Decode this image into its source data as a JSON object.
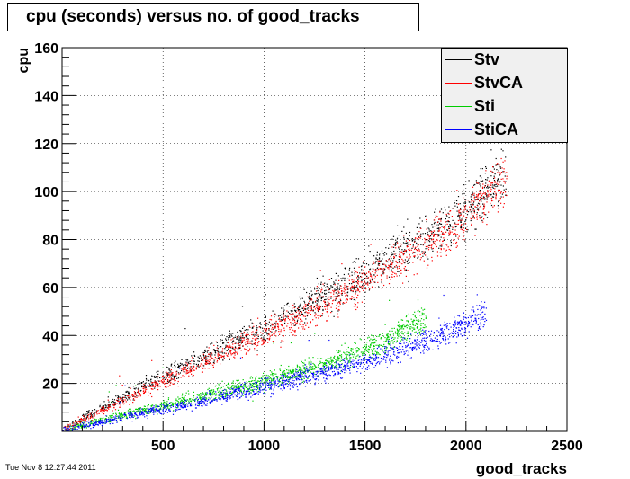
{
  "title": "cpu (seconds) versus no. of good_tracks",
  "timestamp": "Tue Nov  8 12:27:44 2011",
  "colors": {
    "Stv": "#000000",
    "StvCA": "#ff0000",
    "Sti": "#00cc00",
    "StiCA": "#0000ff"
  },
  "chart_data": {
    "type": "scatter",
    "title": "cpu (seconds) versus no. of good_tracks",
    "xlabel": "good_tracks",
    "ylabel": "cpu",
    "xlim": [
      0,
      2500
    ],
    "ylim": [
      0,
      160
    ],
    "xticks": [
      500,
      1000,
      1500,
      2000,
      2500
    ],
    "yticks": [
      20,
      40,
      60,
      80,
      100,
      120,
      140,
      160
    ],
    "grid": true,
    "legend_position": "top-right",
    "series": [
      {
        "name": "Stv",
        "color": "#000000",
        "x": [
          0,
          200,
          400,
          600,
          800,
          1000,
          1200,
          1400,
          1600,
          1800,
          2000,
          2200
        ],
        "y": [
          1,
          10,
          19,
          27,
          35,
          43,
          52,
          61,
          71,
          81,
          93,
          110
        ]
      },
      {
        "name": "StvCA",
        "color": "#ff0000",
        "x": [
          0,
          200,
          400,
          600,
          800,
          1000,
          1200,
          1400,
          1600,
          1800,
          2000,
          2200
        ],
        "y": [
          1,
          9,
          17,
          25,
          33,
          41,
          49,
          58,
          68,
          78,
          90,
          107
        ]
      },
      {
        "name": "Sti",
        "color": "#00cc00",
        "x": [
          0,
          200,
          400,
          600,
          800,
          1000,
          1200,
          1400,
          1600,
          1800
        ],
        "y": [
          1,
          5,
          9,
          13,
          17,
          21,
          26,
          31,
          38,
          48
        ]
      },
      {
        "name": "StiCA",
        "color": "#0000ff",
        "x": [
          0,
          200,
          400,
          600,
          800,
          1000,
          1200,
          1400,
          1600,
          1800,
          2000,
          2100
        ],
        "y": [
          1,
          4,
          8,
          11,
          15,
          19,
          23,
          27,
          32,
          38,
          45,
          51
        ]
      }
    ]
  }
}
